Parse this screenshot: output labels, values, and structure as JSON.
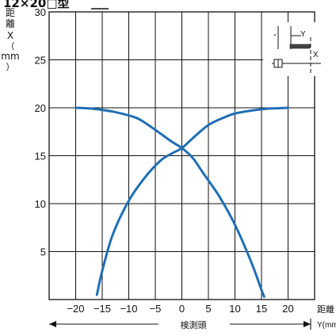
{
  "chart_data": {
    "type": "line",
    "title": "12×20□型",
    "ylabel": "距離X（mm）",
    "xlabel": "距離Y(mm)",
    "bottom_arrow_label": "検測頭",
    "inset": {
      "y_label": "Y",
      "x_label": "X"
    },
    "xlim": [
      -25,
      25
    ],
    "ylim": [
      0,
      30
    ],
    "xticks": [
      -20,
      -15,
      -10,
      -5,
      0,
      5,
      10,
      15,
      20
    ],
    "xtick_labels": [
      "−20",
      "−15",
      "−10",
      "−5",
      "0",
      "5",
      "10",
      "15",
      "20"
    ],
    "yticks": [
      5,
      10,
      15,
      20,
      25,
      30
    ],
    "ytick_labels": [
      "5",
      "10",
      "15",
      "20",
      "25",
      "30"
    ],
    "grid": true,
    "colors": {
      "series": "#1f6fb5",
      "grid": "#111111"
    },
    "series": [
      {
        "x": [
          -16,
          -15,
          -13,
          -10,
          -7,
          -4,
          -2,
          0,
          2,
          5,
          8,
          10,
          13,
          16,
          18,
          20
        ],
        "y": [
          0.5,
          3,
          6.8,
          10.3,
          12.7,
          14.5,
          15.2,
          15.8,
          16.8,
          18.2,
          19.0,
          19.4,
          19.7,
          19.9,
          19.95,
          20
        ]
      },
      {
        "x": [
          -20,
          -18,
          -16,
          -13,
          -10,
          -8,
          -5,
          -2,
          0,
          2,
          4,
          7,
          10,
          13,
          15,
          15.5
        ],
        "y": [
          20,
          19.95,
          19.85,
          19.6,
          19.2,
          18.8,
          17.7,
          16.5,
          15.8,
          14.8,
          13.2,
          10.8,
          7.8,
          4.0,
          1.0,
          0.3
        ]
      }
    ]
  }
}
